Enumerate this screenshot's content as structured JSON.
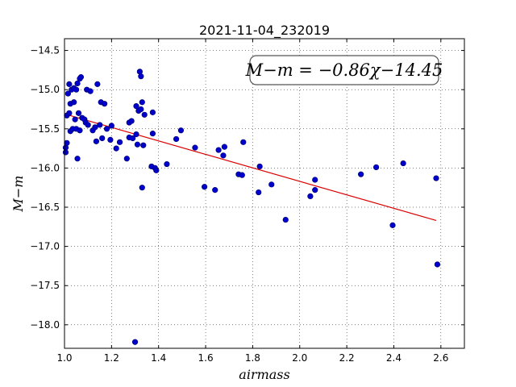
{
  "chart_data": {
    "type": "scatter",
    "title": "2021-11-04_232019",
    "xlabel": "airmass",
    "ylabel": "M−m",
    "xlim": [
      1.0,
      2.7
    ],
    "ylim": [
      -18.3,
      -14.35
    ],
    "y_inverted": true,
    "grid": true,
    "xticks": [
      1.0,
      1.2,
      1.4,
      1.6,
      1.8,
      2.0,
      2.2,
      2.4,
      2.6
    ],
    "xtick_labels": [
      "1.0",
      "1.2",
      "1.4",
      "1.6",
      "1.8",
      "2.0",
      "2.2",
      "2.4",
      "2.6"
    ],
    "yticks": [
      -14.5,
      -15.0,
      -15.5,
      -16.0,
      -16.5,
      -17.0,
      -17.5,
      -18.0
    ],
    "ytick_labels": [
      "−14.5",
      "−15.0",
      "−15.5",
      "−16.0",
      "−16.5",
      "−17.0",
      "−17.5",
      "−18.0"
    ],
    "annotation": "M−m = −0.86χ−14.45",
    "annotation_position": "top-right",
    "point_color": "#0000cc",
    "line_color": "#dd0000",
    "fit": {
      "slope": -0.86,
      "intercept": -14.45,
      "x_range": [
        1.0,
        2.58
      ]
    },
    "points": [
      [
        1.005,
        -15.74
      ],
      [
        1.005,
        -15.8
      ],
      [
        1.01,
        -15.68
      ],
      [
        1.01,
        -15.33
      ],
      [
        1.015,
        -15.05
      ],
      [
        1.02,
        -14.93
      ],
      [
        1.02,
        -15.3
      ],
      [
        1.025,
        -15.18
      ],
      [
        1.025,
        -15.53
      ],
      [
        1.03,
        -15.0
      ],
      [
        1.035,
        -15.5
      ],
      [
        1.04,
        -15.16
      ],
      [
        1.04,
        -14.98
      ],
      [
        1.045,
        -15.38
      ],
      [
        1.05,
        -15.0
      ],
      [
        1.05,
        -15.5
      ],
      [
        1.055,
        -15.88
      ],
      [
        1.055,
        -14.92
      ],
      [
        1.06,
        -15.3
      ],
      [
        1.065,
        -14.86
      ],
      [
        1.065,
        -15.52
      ],
      [
        1.07,
        -14.84
      ],
      [
        1.075,
        -15.36
      ],
      [
        1.085,
        -15.38
      ],
      [
        1.09,
        -15.42
      ],
      [
        1.095,
        -15.0
      ],
      [
        1.1,
        -15.45
      ],
      [
        1.11,
        -15.02
      ],
      [
        1.12,
        -15.52
      ],
      [
        1.13,
        -15.48
      ],
      [
        1.135,
        -15.66
      ],
      [
        1.14,
        -14.93
      ],
      [
        1.15,
        -15.45
      ],
      [
        1.155,
        -15.16
      ],
      [
        1.16,
        -15.62
      ],
      [
        1.17,
        -15.18
      ],
      [
        1.18,
        -15.5
      ],
      [
        1.195,
        -15.64
      ],
      [
        1.2,
        -15.46
      ],
      [
        1.22,
        -15.75
      ],
      [
        1.235,
        -15.67
      ],
      [
        1.265,
        -15.88
      ],
      [
        1.275,
        -15.42
      ],
      [
        1.275,
        -15.61
      ],
      [
        1.285,
        -15.4
      ],
      [
        1.29,
        -15.62
      ],
      [
        1.3,
        -18.22
      ],
      [
        1.305,
        -15.21
      ],
      [
        1.305,
        -15.57
      ],
      [
        1.31,
        -15.7
      ],
      [
        1.315,
        -15.27
      ],
      [
        1.32,
        -14.77
      ],
      [
        1.325,
        -15.25
      ],
      [
        1.325,
        -14.83
      ],
      [
        1.33,
        -16.25
      ],
      [
        1.33,
        -15.16
      ],
      [
        1.335,
        -15.71
      ],
      [
        1.34,
        -15.32
      ],
      [
        1.37,
        -15.98
      ],
      [
        1.375,
        -15.29
      ],
      [
        1.375,
        -15.56
      ],
      [
        1.385,
        -16.0
      ],
      [
        1.39,
        -16.03
      ],
      [
        1.435,
        -15.95
      ],
      [
        1.475,
        -15.63
      ],
      [
        1.495,
        -15.52
      ],
      [
        1.555,
        -15.74
      ],
      [
        1.595,
        -16.24
      ],
      [
        1.64,
        -16.28
      ],
      [
        1.655,
        -15.77
      ],
      [
        1.675,
        -15.84
      ],
      [
        1.68,
        -15.73
      ],
      [
        1.74,
        -16.08
      ],
      [
        1.755,
        -16.09
      ],
      [
        1.76,
        -15.67
      ],
      [
        1.825,
        -16.31
      ],
      [
        1.83,
        -15.98
      ],
      [
        1.88,
        -16.21
      ],
      [
        1.94,
        -16.66
      ],
      [
        2.045,
        -16.36
      ],
      [
        2.065,
        -16.15
      ],
      [
        2.065,
        -16.28
      ],
      [
        2.26,
        -16.08
      ],
      [
        2.325,
        -15.99
      ],
      [
        2.395,
        -16.73
      ],
      [
        2.44,
        -15.94
      ],
      [
        2.58,
        -16.13
      ],
      [
        2.585,
        -17.23
      ]
    ]
  }
}
